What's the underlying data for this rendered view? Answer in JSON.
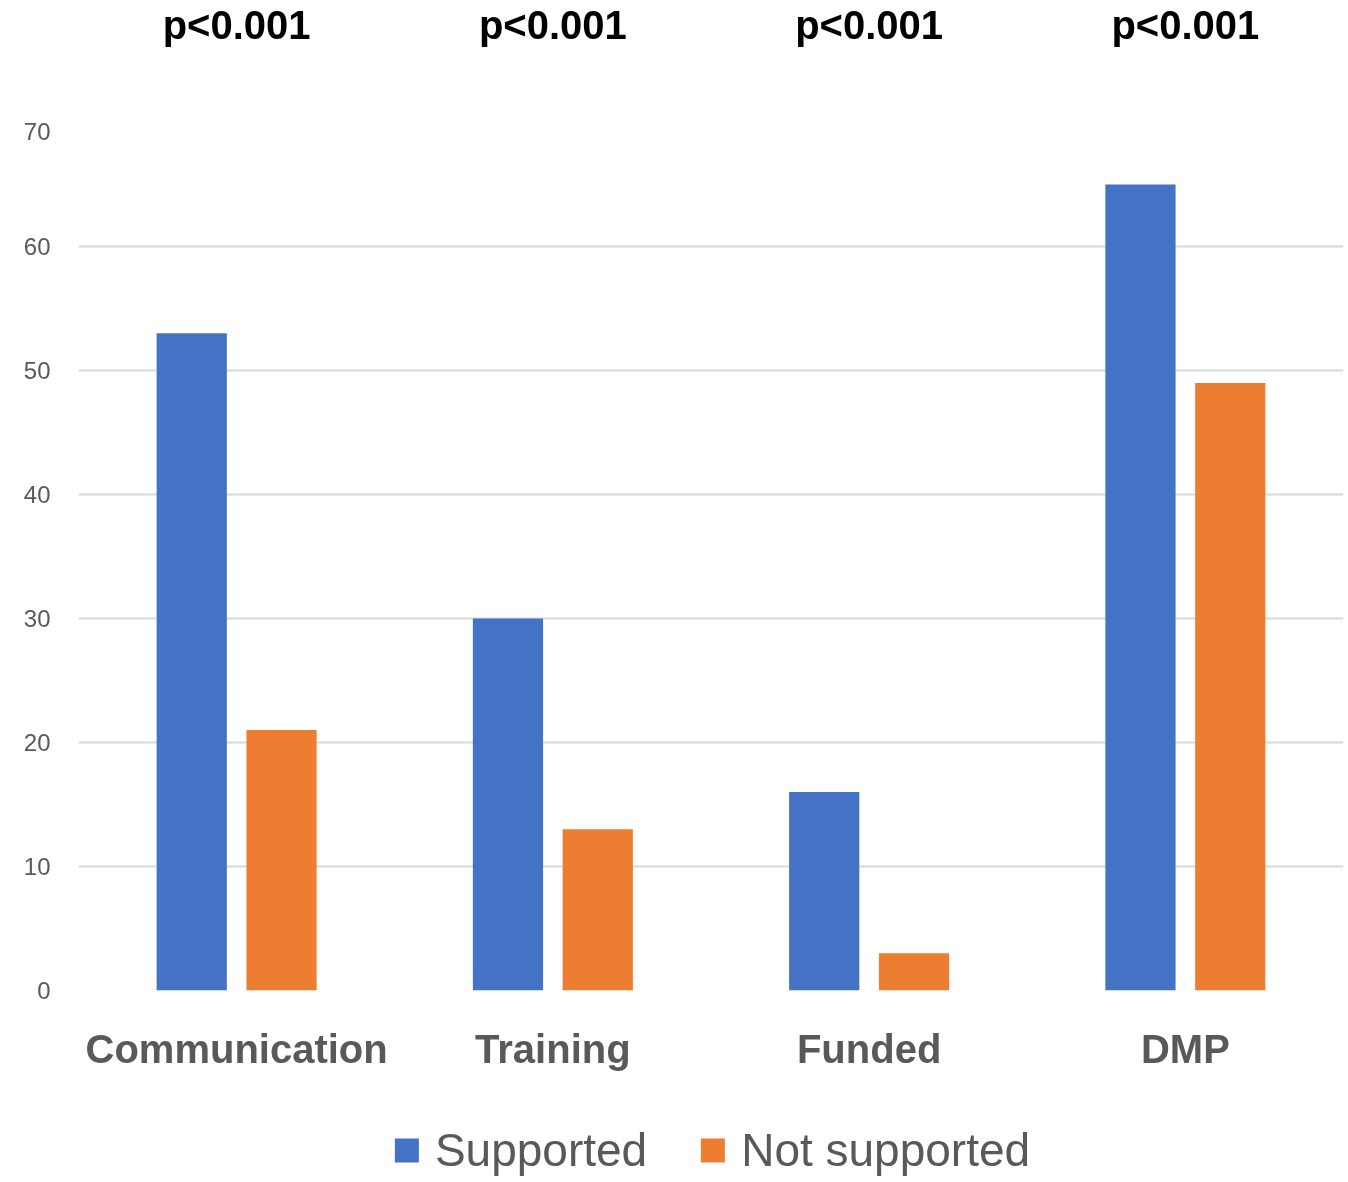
{
  "chart_data": {
    "type": "bar",
    "categories": [
      "Communication",
      "Training",
      "Funded",
      "DMP"
    ],
    "series": [
      {
        "name": "Supported",
        "color": "#4472c4",
        "values": [
          53,
          30,
          16,
          65
        ]
      },
      {
        "name": "Not supported",
        "color": "#ed7d31",
        "values": [
          21,
          13,
          3,
          49
        ]
      }
    ],
    "ylim": [
      0,
      70
    ],
    "yticks": [
      0,
      10,
      20,
      30,
      40,
      50,
      60,
      70
    ],
    "grid": "y",
    "legend": "bottom",
    "annotations": [
      "p<0.001",
      "p<0.001",
      "p<0.001",
      "p<0.001"
    ]
  }
}
